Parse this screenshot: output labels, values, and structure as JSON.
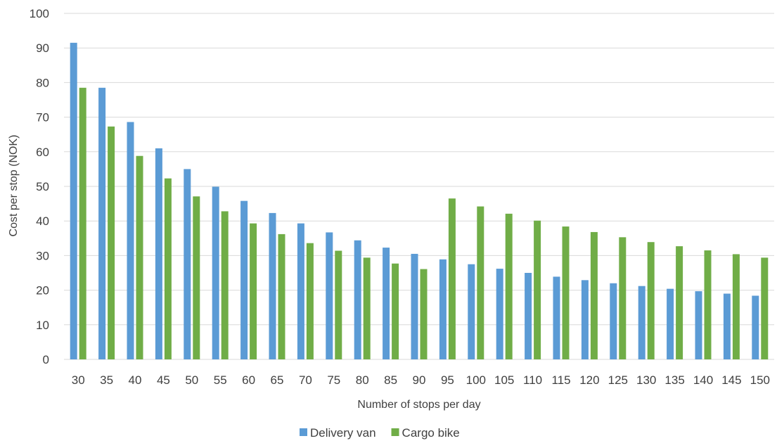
{
  "chart_data": {
    "type": "bar",
    "title": "",
    "xlabel": "Number of stops per day",
    "ylabel": "Cost per stop (NOK)",
    "ylim": [
      0,
      100
    ],
    "yticks": [
      "0",
      "10",
      "20",
      "30",
      "40",
      "50",
      "60",
      "70",
      "80",
      "90",
      "100"
    ],
    "categories": [
      "30",
      "35",
      "40",
      "45",
      "50",
      "55",
      "60",
      "65",
      "70",
      "75",
      "80",
      "85",
      "90",
      "95",
      "100",
      "105",
      "110",
      "115",
      "120",
      "125",
      "130",
      "135",
      "140",
      "145",
      "150"
    ],
    "series": [
      {
        "name": "Delivery van",
        "color": "#5b9bd5",
        "values": [
          91.5,
          78.5,
          68.6,
          61.0,
          55.0,
          49.9,
          45.8,
          42.3,
          39.3,
          36.7,
          34.4,
          32.3,
          30.5,
          28.9,
          27.5,
          26.2,
          25.0,
          23.9,
          22.9,
          22.0,
          21.2,
          20.4,
          19.7,
          19.0,
          18.4
        ]
      },
      {
        "name": "Cargo bike",
        "color": "#70ad47",
        "values": [
          78.5,
          67.3,
          58.8,
          52.3,
          47.1,
          42.8,
          39.3,
          36.2,
          33.6,
          31.4,
          29.4,
          27.7,
          26.1,
          46.5,
          44.2,
          42.1,
          40.1,
          38.4,
          36.8,
          35.3,
          33.9,
          32.7,
          31.5,
          30.4,
          29.4
        ]
      }
    ],
    "grid": true,
    "legend_position": "bottom"
  }
}
